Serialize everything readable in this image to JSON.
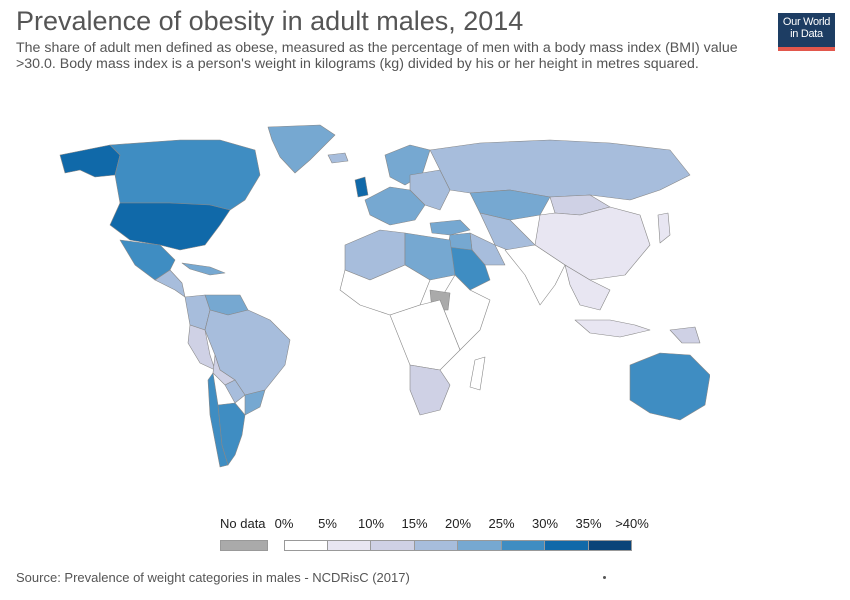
{
  "title": "Prevalence of obesity in adult males, 2014",
  "subtitle": "The share of adult men defined as obese, measured as the percentage of men with a body mass index (BMI) value >30.0. Body mass index is a person's weight in kilograms (kg) divided by his or her height in metres squared.",
  "logo": {
    "line1": "Our World",
    "line2": "in Data"
  },
  "legend": {
    "no_data_label": "No data",
    "no_data_color": "#aaaaaa",
    "ticks": [
      "0%",
      "5%",
      "10%",
      "15%",
      "20%",
      "25%",
      "30%",
      "35%",
      ">40%"
    ],
    "bin_colors": [
      "#ffffff",
      "#e8e6f2",
      "#cfd1e5",
      "#a7bddc",
      "#76a8d1",
      "#3f8dc2",
      "#1069a9",
      "#0a4479"
    ]
  },
  "source": "Source: Prevalence of weight categories in males - NCDRisC (2017)",
  "regions": [
    {
      "name": "Canada",
      "color": "#3f8dc2"
    },
    {
      "name": "Alaska",
      "color": "#1069a9"
    },
    {
      "name": "Greenland",
      "color": "#76a8d1"
    },
    {
      "name": "United States",
      "color": "#1069a9"
    },
    {
      "name": "Mexico",
      "color": "#3f8dc2"
    },
    {
      "name": "Central America",
      "color": "#a7bddc"
    },
    {
      "name": "Caribbean",
      "color": "#76a8d1"
    },
    {
      "name": "Venezuela",
      "color": "#76a8d1"
    },
    {
      "name": "Colombia & Andes",
      "color": "#a7bddc"
    },
    {
      "name": "Brazil",
      "color": "#a7bddc"
    },
    {
      "name": "Peru",
      "color": "#cfd1e5"
    },
    {
      "name": "Bolivia",
      "color": "#cfd1e5"
    },
    {
      "name": "Paraguay",
      "color": "#a7bddc"
    },
    {
      "name": "Chile",
      "color": "#3f8dc2"
    },
    {
      "name": "Argentina",
      "color": "#3f8dc2"
    },
    {
      "name": "Uruguay",
      "color": "#76a8d1"
    },
    {
      "name": "Iceland",
      "color": "#a7bddc"
    },
    {
      "name": "United Kingdom",
      "color": "#1069a9"
    },
    {
      "name": "Scandinavia",
      "color": "#76a8d1"
    },
    {
      "name": "Western Europe",
      "color": "#76a8d1"
    },
    {
      "name": "Eastern Europe",
      "color": "#a7bddc"
    },
    {
      "name": "Russia",
      "color": "#a7bddc"
    },
    {
      "name": "Kazakhstan",
      "color": "#76a8d1"
    },
    {
      "name": "Mongolia",
      "color": "#cfd1e5"
    },
    {
      "name": "China",
      "color": "#e8e6f2"
    },
    {
      "name": "Turkey",
      "color": "#76a8d1"
    },
    {
      "name": "Middle East",
      "color": "#76a8d1"
    },
    {
      "name": "Saudi Arabia",
      "color": "#3f8dc2"
    },
    {
      "name": "Iran",
      "color": "#a7bddc"
    },
    {
      "name": "Central Asia",
      "color": "#a7bddc"
    },
    {
      "name": "South Asia",
      "color": "#ffffff"
    },
    {
      "name": "Southeast Asia",
      "color": "#e8e6f2"
    },
    {
      "name": "Japan",
      "color": "#e8e6f2"
    },
    {
      "name": "Indonesia",
      "color": "#e8e6f2"
    },
    {
      "name": "Papua New Guinea",
      "color": "#cfd1e5"
    },
    {
      "name": "Australia",
      "color": "#3f8dc2"
    },
    {
      "name": "New Zealand",
      "color": "#3f8dc2"
    },
    {
      "name": "North Africa",
      "color": "#a7bddc"
    },
    {
      "name": "Egypt & Libya",
      "color": "#76a8d1"
    },
    {
      "name": "West Africa",
      "color": "#ffffff"
    },
    {
      "name": "Central Africa",
      "color": "#ffffff"
    },
    {
      "name": "East Africa",
      "color": "#ffffff"
    },
    {
      "name": "South Sudan",
      "color": "#aaaaaa"
    },
    {
      "name": "Southern Africa",
      "color": "#cfd1e5"
    },
    {
      "name": "Madagascar",
      "color": "#ffffff"
    }
  ]
}
